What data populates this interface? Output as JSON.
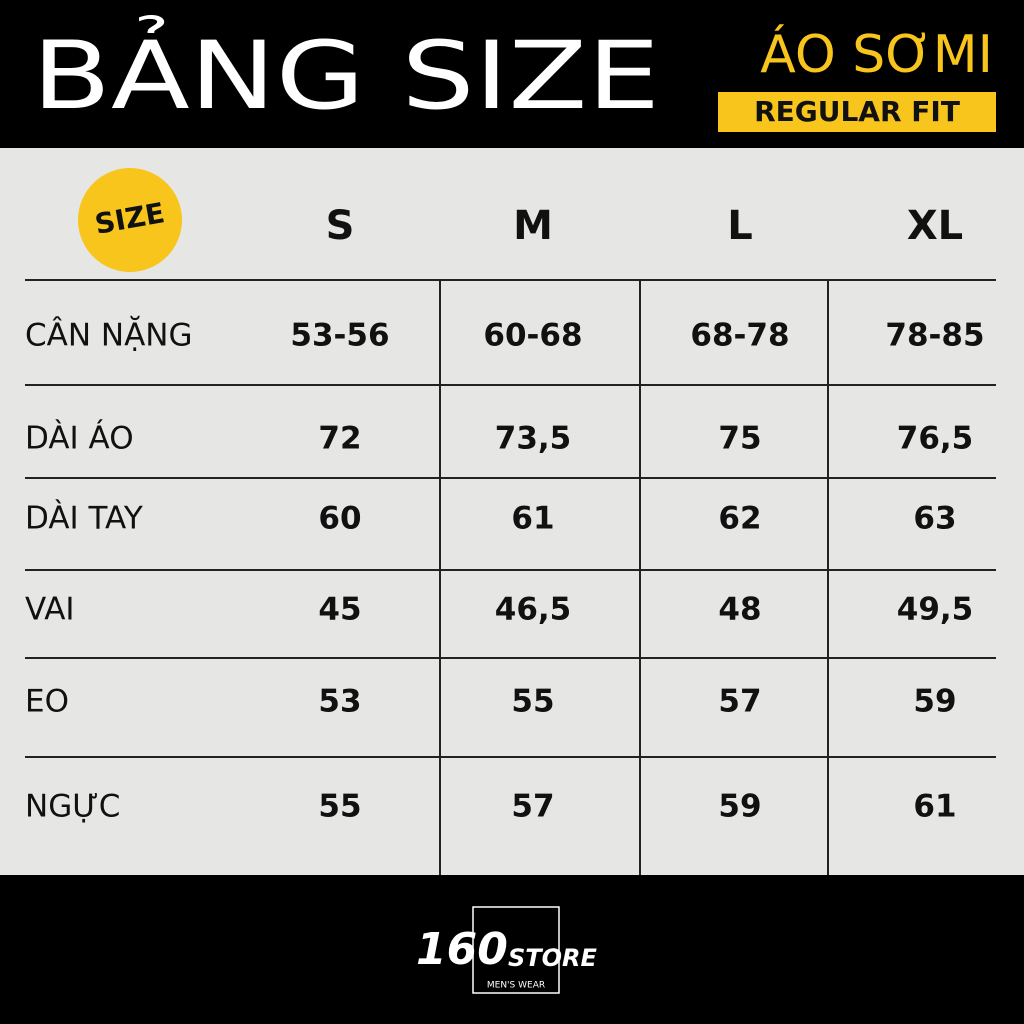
{
  "header": {
    "title": "BẢNG SIZE",
    "product": "ÁO SƠMI",
    "fit": "REGULAR FIT"
  },
  "table": {
    "size_badge": "SIZE",
    "columns": [
      "S",
      "M",
      "L",
      "XL"
    ],
    "rows": [
      [
        "CÂN NẶNG",
        "53-56",
        "60-68",
        "68-78",
        "78-85"
      ],
      [
        "DÀI ÁO",
        "72",
        "73,5",
        "75",
        "76,5"
      ],
      [
        "DÀI TAY",
        "60",
        "61",
        "62",
        "63"
      ],
      [
        "VAI",
        "45",
        "46,5",
        "48",
        "49,5"
      ],
      [
        "EO",
        "53",
        "55",
        "57",
        "59"
      ],
      [
        "NGỰC",
        "55",
        "57",
        "59",
        "61"
      ]
    ]
  },
  "footer": {
    "brand_number": "160",
    "brand_word": "STORE",
    "tagline": "MEN'S WEAR"
  }
}
